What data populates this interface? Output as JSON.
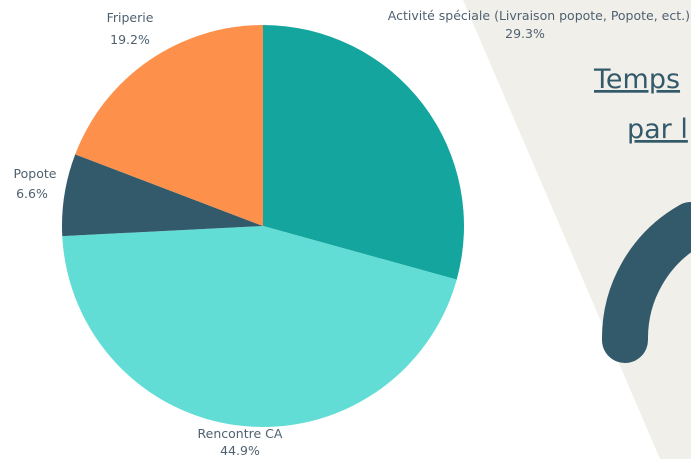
{
  "chart_data": {
    "type": "pie",
    "categories": [
      "Activité spéciale (Livraison popote, Popote, ect.)",
      "Rencontre CA",
      "Popote",
      "Friperie"
    ],
    "values": [
      29.3,
      44.9,
      6.6,
      19.2
    ],
    "value_labels": [
      "29.3%",
      "44.9%",
      "6.6%",
      "19.2%"
    ],
    "colors": [
      "#14a69e",
      "#62ddd6",
      "#335a6b",
      "#fd914c"
    ]
  },
  "side_title": {
    "lines": [
      "Temps",
      "par l"
    ]
  }
}
